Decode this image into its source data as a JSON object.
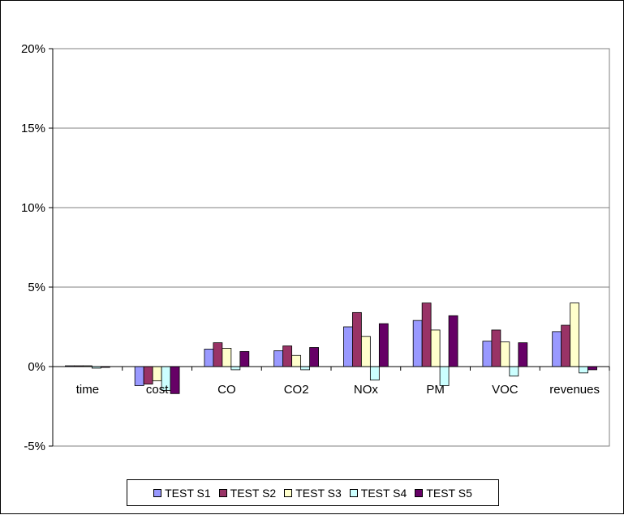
{
  "chart_data": {
    "type": "bar",
    "categories": [
      "time",
      "cost",
      "CO",
      "CO2",
      "NOx",
      "PM",
      "VOC",
      "revenues"
    ],
    "series": [
      {
        "name": "TEST S1",
        "color": "#9999ff",
        "values": [
          0.05,
          -1.2,
          1.1,
          1.0,
          2.5,
          2.9,
          1.6,
          2.2
        ]
      },
      {
        "name": "TEST S2",
        "color": "#993366",
        "values": [
          0.05,
          -1.1,
          1.5,
          1.3,
          3.4,
          4.0,
          2.3,
          2.6
        ]
      },
      {
        "name": "TEST S3",
        "color": "#ffffcc",
        "values": [
          0.05,
          -0.9,
          1.15,
          0.7,
          1.9,
          2.3,
          1.55,
          4.0
        ]
      },
      {
        "name": "TEST S4",
        "color": "#ccffff",
        "values": [
          -0.1,
          -1.5,
          -0.2,
          -0.2,
          -0.85,
          -1.2,
          -0.6,
          -0.4
        ]
      },
      {
        "name": "TEST S5",
        "color": "#660066",
        "values": [
          -0.05,
          -1.7,
          0.95,
          1.2,
          2.7,
          3.2,
          1.5,
          -0.2
        ]
      }
    ],
    "ylim": [
      -5,
      20
    ],
    "yticks": [
      -5,
      0,
      5,
      10,
      15,
      20
    ],
    "ytick_labels": [
      "-5%",
      "0%",
      "5%",
      "10%",
      "15%",
      "20%"
    ],
    "unit": "%",
    "grid": true,
    "legend_position": "bottom"
  }
}
